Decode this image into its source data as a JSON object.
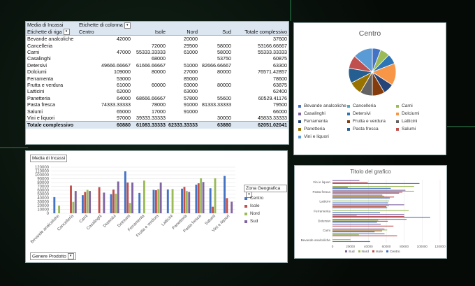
{
  "pivot": {
    "value_label": "Media di Incassi",
    "col_labels": "Etichette di colonna",
    "row_labels": "Etichette di riga",
    "columns": [
      "Centro",
      "Isole",
      "Nord",
      "Sud",
      "Totale complessivo"
    ],
    "rows": [
      {
        "label": "Bevande analcoliche",
        "values": [
          "42000",
          "",
          "20000",
          "",
          "37600"
        ]
      },
      {
        "label": "Cancelleria",
        "values": [
          "",
          "72000",
          "29500",
          "58000",
          "53166.66667"
        ]
      },
      {
        "label": "Carni",
        "values": [
          "47000",
          "55333.33333",
          "61000",
          "58000",
          "55333.33333"
        ]
      },
      {
        "label": "Casalinghi",
        "values": [
          "",
          "68000",
          "",
          "53750",
          "60875"
        ]
      },
      {
        "label": "Detersivi",
        "values": [
          "49666.66667",
          "61666.66667",
          "51000",
          "82666.66667",
          "63300"
        ]
      },
      {
        "label": "Dolciumi",
        "values": [
          "109000",
          "80000",
          "27000",
          "80000",
          "76571.42857"
        ]
      },
      {
        "label": "Ferramenta",
        "values": [
          "53000",
          "",
          "85000",
          "",
          "78600"
        ]
      },
      {
        "label": "Frutta e verdura",
        "values": [
          "61000",
          "60000",
          "63000",
          "80000",
          "63875"
        ]
      },
      {
        "label": "Latticini",
        "values": [
          "62000",
          "",
          "63000",
          "",
          "62400"
        ]
      },
      {
        "label": "Panetteria",
        "values": [
          "64000",
          "68666.66667",
          "57800",
          "55600",
          "60529.41176"
        ]
      },
      {
        "label": "Pasta fresca",
        "values": [
          "74333.33333",
          "78000",
          "91000",
          "81333.33333",
          "79500"
        ]
      },
      {
        "label": "Salumi",
        "values": [
          "65000",
          "17000",
          "91000",
          "",
          "66000"
        ]
      },
      {
        "label": "Vini e liquori",
        "values": [
          "97000",
          "39333.33333",
          "",
          "30000",
          "45833.33333"
        ]
      }
    ],
    "total": {
      "label": "Totale complessivo",
      "values": [
        "60880",
        "61083.33333",
        "62333.33333",
        "63880",
        "62051.02041"
      ]
    }
  },
  "colors": {
    "centro": "#4472c4",
    "isole": "#c0504d",
    "nord": "#9bbb59",
    "sud": "#8064a2",
    "pie": [
      "#4472c4",
      "#4bacc6",
      "#9bbb59",
      "#8064a2",
      "#2e75b6",
      "#f79646",
      "#264478",
      "#843c0c",
      "#636363",
      "#997300",
      "#255e91",
      "#c0504d",
      "#5b9bd5"
    ]
  },
  "pie_chart": {
    "title": "Centro",
    "legend": [
      "Bevande analcoliche",
      "Cancelleria",
      "Carni",
      "Casalinghi",
      "Detersivi",
      "Dolciumi",
      "Ferramenta",
      "Frutta e verdura",
      "Latticini",
      "Panetteria",
      "Pasta fresca",
      "Salumi",
      "Vini e liquori"
    ]
  },
  "column_chart": {
    "value_button": "Media di Incassi",
    "axis_button": "Genere Prodotto",
    "legend_button": "Zona Geografica",
    "legend_items": [
      "Centro",
      "Isole",
      "Nord",
      "Sud"
    ]
  },
  "bar_chart": {
    "title": "Titolo del grafico",
    "legend_items": [
      "Sud",
      "Nord",
      "Isole",
      "Centro"
    ]
  },
  "chart_data": [
    {
      "type": "pie",
      "title": "Centro",
      "categories": [
        "Bevande analcoliche",
        "Cancelleria",
        "Carni",
        "Casalinghi",
        "Detersivi",
        "Dolciumi",
        "Ferramenta",
        "Frutta e verdura",
        "Latticini",
        "Panetteria",
        "Pasta fresca",
        "Salumi",
        "Vini e liquori"
      ],
      "values": [
        42000,
        0,
        47000,
        0,
        49666.67,
        109000,
        53000,
        61000,
        62000,
        64000,
        74333.33,
        65000,
        97000
      ]
    },
    {
      "type": "bar",
      "categories": [
        "Bevande analcoliche",
        "Cancelleria",
        "Carni",
        "Casalinghi",
        "Detersivi",
        "Dolciumi",
        "Ferramenta",
        "Frutta e verdura",
        "Latticini",
        "Panetteria",
        "Pasta fresca",
        "Salumi",
        "Vini e liquori"
      ],
      "series": [
        {
          "name": "Centro",
          "values": [
            42000,
            null,
            47000,
            null,
            49666.67,
            109000,
            53000,
            61000,
            62000,
            64000,
            74333.33,
            65000,
            97000
          ]
        },
        {
          "name": "Isole",
          "values": [
            null,
            72000,
            55333.33,
            68000,
            61666.67,
            80000,
            null,
            60000,
            null,
            68666.67,
            78000,
            17000,
            39333.33
          ]
        },
        {
          "name": "Nord",
          "values": [
            20000,
            29500,
            61000,
            null,
            51000,
            27000,
            85000,
            63000,
            63000,
            57800,
            91000,
            91000,
            null
          ]
        },
        {
          "name": "Sud",
          "values": [
            null,
            58000,
            58000,
            53750,
            82666.67,
            80000,
            null,
            80000,
            null,
            55600,
            81333.33,
            null,
            30000
          ]
        }
      ],
      "ylim": [
        0,
        120000
      ],
      "yticks": [
        0,
        10000,
        20000,
        30000,
        40000,
        50000,
        60000,
        70000,
        80000,
        90000,
        100000,
        110000,
        120000
      ],
      "legend": "right"
    },
    {
      "type": "bar",
      "orientation": "horizontal",
      "title": "Titolo del grafico",
      "categories": [
        "Bevande analcoliche",
        "Cancelleria",
        "Carni",
        "Casalinghi",
        "Detersivi",
        "Dolciumi",
        "Ferramenta",
        "Frutta e verdura",
        "Latticini",
        "Panetteria",
        "Pasta fresca",
        "Salumi",
        "Vini e liquori"
      ],
      "category_labels_shown": [
        "Bevande analcoliche",
        "Carni",
        "Detersivi",
        "Ferramenta",
        "Latticini",
        "Pasta fresca",
        "Vini e liquori"
      ],
      "series": [
        {
          "name": "Sud",
          "values": [
            null,
            58000,
            58000,
            53750,
            82666.67,
            80000,
            null,
            80000,
            null,
            55600,
            81333.33,
            null,
            30000
          ]
        },
        {
          "name": "Nord",
          "values": [
            20000,
            29500,
            61000,
            null,
            51000,
            27000,
            85000,
            63000,
            63000,
            57800,
            91000,
            91000,
            null
          ]
        },
        {
          "name": "Isole",
          "values": [
            null,
            72000,
            55333.33,
            68000,
            61666.67,
            80000,
            null,
            60000,
            null,
            68666.67,
            78000,
            17000,
            39333.33
          ]
        },
        {
          "name": "Centro",
          "values": [
            42000,
            null,
            47000,
            null,
            49666.67,
            109000,
            53000,
            61000,
            62000,
            64000,
            74333.33,
            65000,
            97000
          ]
        }
      ],
      "xlim": [
        0,
        120000
      ],
      "xticks": [
        0,
        20000,
        40000,
        60000,
        80000,
        100000,
        120000
      ],
      "legend": "bottom"
    }
  ]
}
